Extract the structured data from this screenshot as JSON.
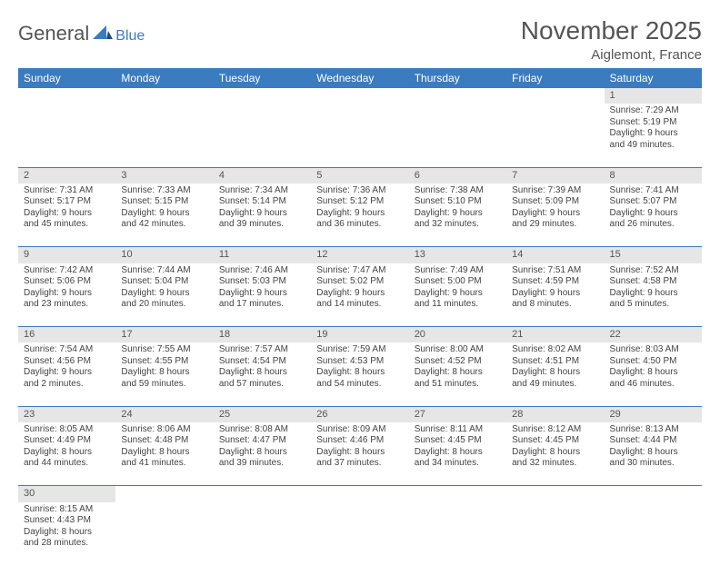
{
  "logo": {
    "general": "General",
    "blue": "Blue"
  },
  "title": "November 2025",
  "location": "Aiglemont, France",
  "colors": {
    "header_bg": "#3b7bbf",
    "header_text": "#ffffff",
    "daynum_bg": "#e6e6e6",
    "border": "#3b7bbf",
    "body_text": "#444444",
    "title_text": "#555555"
  },
  "typography": {
    "title_fontsize": 28,
    "location_fontsize": 15,
    "dayheader_fontsize": 12,
    "daynum_fontsize": 11,
    "cell_fontsize": 10
  },
  "day_headers": [
    "Sunday",
    "Monday",
    "Tuesday",
    "Wednesday",
    "Thursday",
    "Friday",
    "Saturday"
  ],
  "weeks": [
    {
      "nums": [
        "",
        "",
        "",
        "",
        "",
        "",
        "1"
      ],
      "cells": [
        null,
        null,
        null,
        null,
        null,
        null,
        {
          "sunrise": "Sunrise: 7:29 AM",
          "sunset": "Sunset: 5:19 PM",
          "day1": "Daylight: 9 hours",
          "day2": "and 49 minutes."
        }
      ]
    },
    {
      "nums": [
        "2",
        "3",
        "4",
        "5",
        "6",
        "7",
        "8"
      ],
      "cells": [
        {
          "sunrise": "Sunrise: 7:31 AM",
          "sunset": "Sunset: 5:17 PM",
          "day1": "Daylight: 9 hours",
          "day2": "and 45 minutes."
        },
        {
          "sunrise": "Sunrise: 7:33 AM",
          "sunset": "Sunset: 5:15 PM",
          "day1": "Daylight: 9 hours",
          "day2": "and 42 minutes."
        },
        {
          "sunrise": "Sunrise: 7:34 AM",
          "sunset": "Sunset: 5:14 PM",
          "day1": "Daylight: 9 hours",
          "day2": "and 39 minutes."
        },
        {
          "sunrise": "Sunrise: 7:36 AM",
          "sunset": "Sunset: 5:12 PM",
          "day1": "Daylight: 9 hours",
          "day2": "and 36 minutes."
        },
        {
          "sunrise": "Sunrise: 7:38 AM",
          "sunset": "Sunset: 5:10 PM",
          "day1": "Daylight: 9 hours",
          "day2": "and 32 minutes."
        },
        {
          "sunrise": "Sunrise: 7:39 AM",
          "sunset": "Sunset: 5:09 PM",
          "day1": "Daylight: 9 hours",
          "day2": "and 29 minutes."
        },
        {
          "sunrise": "Sunrise: 7:41 AM",
          "sunset": "Sunset: 5:07 PM",
          "day1": "Daylight: 9 hours",
          "day2": "and 26 minutes."
        }
      ]
    },
    {
      "nums": [
        "9",
        "10",
        "11",
        "12",
        "13",
        "14",
        "15"
      ],
      "cells": [
        {
          "sunrise": "Sunrise: 7:42 AM",
          "sunset": "Sunset: 5:06 PM",
          "day1": "Daylight: 9 hours",
          "day2": "and 23 minutes."
        },
        {
          "sunrise": "Sunrise: 7:44 AM",
          "sunset": "Sunset: 5:04 PM",
          "day1": "Daylight: 9 hours",
          "day2": "and 20 minutes."
        },
        {
          "sunrise": "Sunrise: 7:46 AM",
          "sunset": "Sunset: 5:03 PM",
          "day1": "Daylight: 9 hours",
          "day2": "and 17 minutes."
        },
        {
          "sunrise": "Sunrise: 7:47 AM",
          "sunset": "Sunset: 5:02 PM",
          "day1": "Daylight: 9 hours",
          "day2": "and 14 minutes."
        },
        {
          "sunrise": "Sunrise: 7:49 AM",
          "sunset": "Sunset: 5:00 PM",
          "day1": "Daylight: 9 hours",
          "day2": "and 11 minutes."
        },
        {
          "sunrise": "Sunrise: 7:51 AM",
          "sunset": "Sunset: 4:59 PM",
          "day1": "Daylight: 9 hours",
          "day2": "and 8 minutes."
        },
        {
          "sunrise": "Sunrise: 7:52 AM",
          "sunset": "Sunset: 4:58 PM",
          "day1": "Daylight: 9 hours",
          "day2": "and 5 minutes."
        }
      ]
    },
    {
      "nums": [
        "16",
        "17",
        "18",
        "19",
        "20",
        "21",
        "22"
      ],
      "cells": [
        {
          "sunrise": "Sunrise: 7:54 AM",
          "sunset": "Sunset: 4:56 PM",
          "day1": "Daylight: 9 hours",
          "day2": "and 2 minutes."
        },
        {
          "sunrise": "Sunrise: 7:55 AM",
          "sunset": "Sunset: 4:55 PM",
          "day1": "Daylight: 8 hours",
          "day2": "and 59 minutes."
        },
        {
          "sunrise": "Sunrise: 7:57 AM",
          "sunset": "Sunset: 4:54 PM",
          "day1": "Daylight: 8 hours",
          "day2": "and 57 minutes."
        },
        {
          "sunrise": "Sunrise: 7:59 AM",
          "sunset": "Sunset: 4:53 PM",
          "day1": "Daylight: 8 hours",
          "day2": "and 54 minutes."
        },
        {
          "sunrise": "Sunrise: 8:00 AM",
          "sunset": "Sunset: 4:52 PM",
          "day1": "Daylight: 8 hours",
          "day2": "and 51 minutes."
        },
        {
          "sunrise": "Sunrise: 8:02 AM",
          "sunset": "Sunset: 4:51 PM",
          "day1": "Daylight: 8 hours",
          "day2": "and 49 minutes."
        },
        {
          "sunrise": "Sunrise: 8:03 AM",
          "sunset": "Sunset: 4:50 PM",
          "day1": "Daylight: 8 hours",
          "day2": "and 46 minutes."
        }
      ]
    },
    {
      "nums": [
        "23",
        "24",
        "25",
        "26",
        "27",
        "28",
        "29"
      ],
      "cells": [
        {
          "sunrise": "Sunrise: 8:05 AM",
          "sunset": "Sunset: 4:49 PM",
          "day1": "Daylight: 8 hours",
          "day2": "and 44 minutes."
        },
        {
          "sunrise": "Sunrise: 8:06 AM",
          "sunset": "Sunset: 4:48 PM",
          "day1": "Daylight: 8 hours",
          "day2": "and 41 minutes."
        },
        {
          "sunrise": "Sunrise: 8:08 AM",
          "sunset": "Sunset: 4:47 PM",
          "day1": "Daylight: 8 hours",
          "day2": "and 39 minutes."
        },
        {
          "sunrise": "Sunrise: 8:09 AM",
          "sunset": "Sunset: 4:46 PM",
          "day1": "Daylight: 8 hours",
          "day2": "and 37 minutes."
        },
        {
          "sunrise": "Sunrise: 8:11 AM",
          "sunset": "Sunset: 4:45 PM",
          "day1": "Daylight: 8 hours",
          "day2": "and 34 minutes."
        },
        {
          "sunrise": "Sunrise: 8:12 AM",
          "sunset": "Sunset: 4:45 PM",
          "day1": "Daylight: 8 hours",
          "day2": "and 32 minutes."
        },
        {
          "sunrise": "Sunrise: 8:13 AM",
          "sunset": "Sunset: 4:44 PM",
          "day1": "Daylight: 8 hours",
          "day2": "and 30 minutes."
        }
      ]
    },
    {
      "nums": [
        "30",
        "",
        "",
        "",
        "",
        "",
        ""
      ],
      "cells": [
        {
          "sunrise": "Sunrise: 8:15 AM",
          "sunset": "Sunset: 4:43 PM",
          "day1": "Daylight: 8 hours",
          "day2": "and 28 minutes."
        },
        null,
        null,
        null,
        null,
        null,
        null
      ]
    }
  ]
}
